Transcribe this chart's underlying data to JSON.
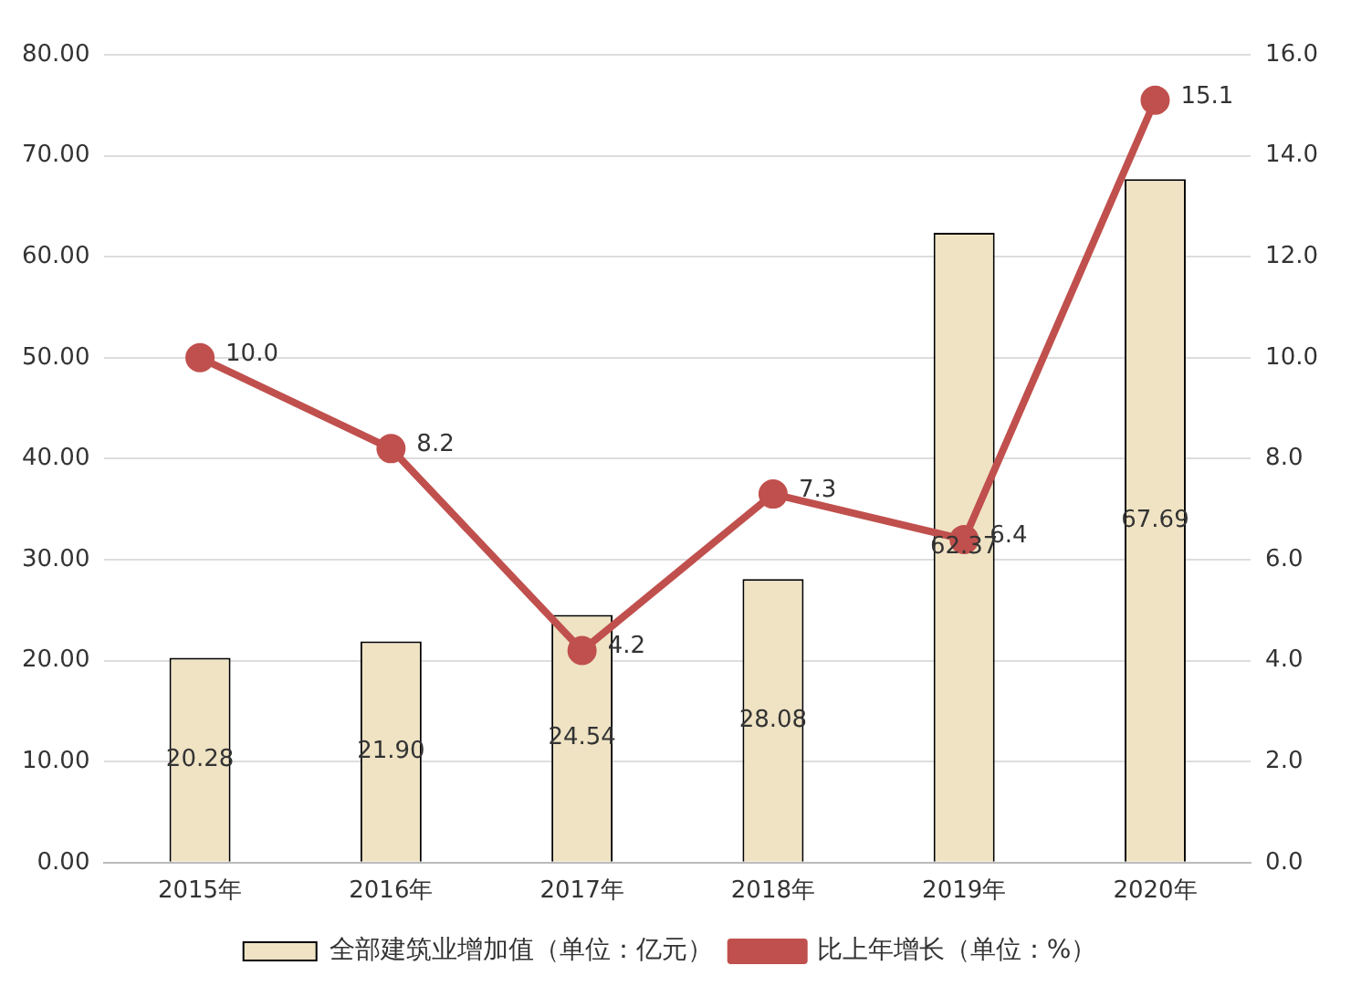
{
  "chart_data": {
    "type": "bar",
    "categories": [
      "2015年",
      "2016年",
      "2017年",
      "2018年",
      "2019年",
      "2020年"
    ],
    "series": [
      {
        "name": "全部建筑业增加值（单位：亿元）",
        "color": "#efe3c4",
        "values": [
          20.28,
          21.9,
          24.54,
          28.08,
          62.37,
          67.69
        ],
        "value_labels": [
          "20.28",
          "21.90",
          "24.54",
          "28.08",
          "62.37",
          "67.69"
        ]
      },
      {
        "name": "比上年增长（单位：%）",
        "type": "line",
        "axis": "y2",
        "color": "#c0504d",
        "values": [
          10.0,
          8.2,
          4.2,
          7.3,
          6.4,
          15.1
        ],
        "value_labels": [
          "10.0",
          "8.2",
          "4.2",
          "7.3",
          "6.4",
          "15.1"
        ]
      }
    ],
    "ylim": [
      0,
      80
    ],
    "yticks": [
      {
        "value": 0,
        "label": "0.00"
      },
      {
        "value": 10,
        "label": "10.00"
      },
      {
        "value": 20,
        "label": "20.00"
      },
      {
        "value": 30,
        "label": "30.00"
      },
      {
        "value": 40,
        "label": "40.00"
      },
      {
        "value": 50,
        "label": "50.00"
      },
      {
        "value": 60,
        "label": "60.00"
      },
      {
        "value": 70,
        "label": "70.00"
      },
      {
        "value": 80,
        "label": "80.00"
      }
    ],
    "y2lim": [
      0,
      16
    ],
    "y2ticks": [
      {
        "value": 0,
        "label": "0.0"
      },
      {
        "value": 2,
        "label": "2.0"
      },
      {
        "value": 4,
        "label": "4.0"
      },
      {
        "value": 6,
        "label": "6.0"
      },
      {
        "value": 8,
        "label": "8.0"
      },
      {
        "value": 10,
        "label": "10.0"
      },
      {
        "value": 12,
        "label": "12.0"
      },
      {
        "value": 14,
        "label": "14.0"
      },
      {
        "value": 16,
        "label": "16.0"
      }
    ],
    "grid": "y",
    "legend": "bottom",
    "marker": "circle"
  }
}
